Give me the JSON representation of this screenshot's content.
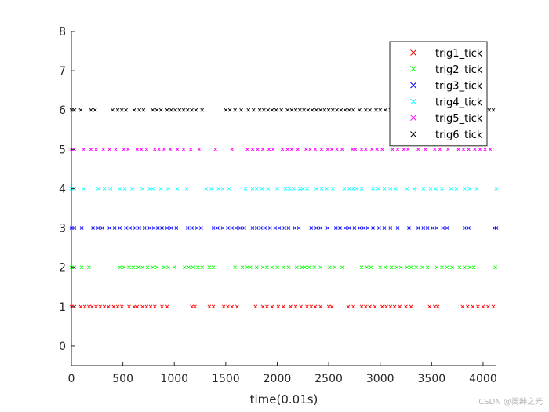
{
  "chart_data": {
    "type": "scatter",
    "xlabel": "time(0.01s)",
    "ylabel": "",
    "title": "",
    "xlim": [
      0,
      4130
    ],
    "ylim": [
      -0.5,
      8
    ],
    "xticks": [
      0,
      500,
      1000,
      1500,
      2000,
      2500,
      3000,
      3500,
      4000
    ],
    "yticks": [
      0,
      1,
      2,
      3,
      4,
      5,
      6,
      7,
      8
    ],
    "grid": false,
    "marker": "x",
    "legend": {
      "location": "top-right"
    },
    "series": [
      {
        "name": "trig1_tick",
        "color": "#ff0000",
        "y": 1,
        "x": [
          0,
          30,
          90,
          130,
          170,
          200,
          240,
          280,
          320,
          360,
          410,
          450,
          490,
          560,
          610,
          640,
          690,
          730,
          770,
          810,
          880,
          930,
          1170,
          1200,
          1340,
          1380,
          1480,
          1520,
          1560,
          1610,
          1790,
          1860,
          1900,
          1950,
          2010,
          2060,
          2130,
          2180,
          2230,
          2290,
          2330,
          2370,
          2420,
          2500,
          2530,
          2690,
          2740,
          2820,
          2860,
          2900,
          2950,
          3020,
          3060,
          3100,
          3140,
          3190,
          3250,
          3300,
          3480,
          3530,
          3560,
          3800,
          3850,
          3900,
          3950,
          4000,
          4050,
          4100
        ]
      },
      {
        "name": "trig2_tick",
        "color": "#00ff00",
        "y": 2,
        "x": [
          0,
          30,
          100,
          170,
          470,
          510,
          560,
          600,
          650,
          690,
          740,
          790,
          830,
          900,
          940,
          1000,
          1100,
          1140,
          1180,
          1230,
          1270,
          1340,
          1380,
          1590,
          1660,
          1710,
          1740,
          1800,
          1860,
          1900,
          1950,
          2000,
          2060,
          2110,
          2190,
          2240,
          2270,
          2310,
          2360,
          2420,
          2510,
          2560,
          2630,
          2820,
          2870,
          2910,
          3000,
          3050,
          3110,
          3160,
          3200,
          3260,
          3300,
          3350,
          3410,
          3460,
          3550,
          3600,
          3650,
          3700,
          3770,
          3820,
          3870,
          3910,
          4120
        ]
      },
      {
        "name": "trig3_tick",
        "color": "#0000ff",
        "y": 3,
        "x": [
          0,
          30,
          100,
          210,
          260,
          300,
          370,
          420,
          470,
          530,
          570,
          620,
          660,
          710,
          760,
          800,
          840,
          880,
          930,
          970,
          1020,
          1130,
          1170,
          1220,
          1260,
          1380,
          1420,
          1470,
          1520,
          1560,
          1600,
          1640,
          1680,
          1760,
          1800,
          1840,
          1880,
          1930,
          1980,
          2020,
          2070,
          2110,
          2170,
          2210,
          2330,
          2380,
          2420,
          2490,
          2570,
          2610,
          2660,
          2700,
          2750,
          2800,
          2840,
          2880,
          2930,
          2990,
          3040,
          3100,
          3170,
          3280,
          3370,
          3420,
          3460,
          3510,
          3550,
          3610,
          3650,
          3820,
          3860,
          4110,
          4130
        ]
      },
      {
        "name": "trig4_tick",
        "color": "#00ffff",
        "y": 4,
        "x": [
          0,
          30,
          120,
          260,
          320,
          380,
          470,
          520,
          590,
          690,
          760,
          790,
          870,
          940,
          1030,
          1120,
          1310,
          1360,
          1430,
          1470,
          1530,
          1690,
          1760,
          1800,
          1850,
          1910,
          2000,
          2080,
          2120,
          2160,
          2220,
          2250,
          2290,
          2380,
          2430,
          2480,
          2540,
          2650,
          2700,
          2740,
          2770,
          2820,
          2930,
          2980,
          3040,
          3100,
          3150,
          3260,
          3330,
          3420,
          3490,
          3540,
          3600,
          3690,
          3740,
          3820,
          3870,
          3940,
          4130
        ]
      },
      {
        "name": "trig5_tick",
        "color": "#ff00ff",
        "y": 5,
        "x": [
          0,
          30,
          120,
          190,
          240,
          310,
          370,
          430,
          510,
          550,
          640,
          680,
          730,
          810,
          850,
          900,
          960,
          1030,
          1090,
          1160,
          1240,
          1400,
          1560,
          1710,
          1760,
          1810,
          1860,
          1920,
          1960,
          2050,
          2100,
          2140,
          2200,
          2280,
          2320,
          2370,
          2430,
          2490,
          2530,
          2580,
          2630,
          2730,
          2760,
          2820,
          2860,
          2920,
          2970,
          3020,
          3120,
          3170,
          3230,
          3270,
          3370,
          3440,
          3530,
          3580,
          3660,
          3760,
          3810,
          3860,
          3920,
          3970,
          4020,
          4070
        ]
      },
      {
        "name": "trig6_tick",
        "color": "#000000",
        "y": 6,
        "x": [
          0,
          30,
          90,
          190,
          230,
          400,
          450,
          490,
          530,
          610,
          660,
          700,
          790,
          830,
          870,
          930,
          970,
          1010,
          1050,
          1090,
          1130,
          1170,
          1210,
          1270,
          1500,
          1540,
          1590,
          1650,
          1720,
          1770,
          1830,
          1870,
          1910,
          1950,
          1990,
          2040,
          2100,
          2140,
          2180,
          2220,
          2260,
          2300,
          2340,
          2380,
          2420,
          2460,
          2500,
          2540,
          2580,
          2620,
          2660,
          2700,
          2740,
          2800,
          2860,
          2900,
          2960,
          3000,
          3050,
          3100,
          3160,
          3200,
          3240,
          3280,
          3340,
          3380,
          3440,
          3480,
          3520,
          3560,
          3620,
          3660,
          3700,
          3760,
          3800,
          3860,
          3940,
          4000,
          4060,
          4100
        ]
      }
    ]
  },
  "watermark": "CSDN @阔绅之光",
  "colors": {
    "axis": "#262626",
    "background": "#ffffff",
    "legend_border": "#262626"
  }
}
